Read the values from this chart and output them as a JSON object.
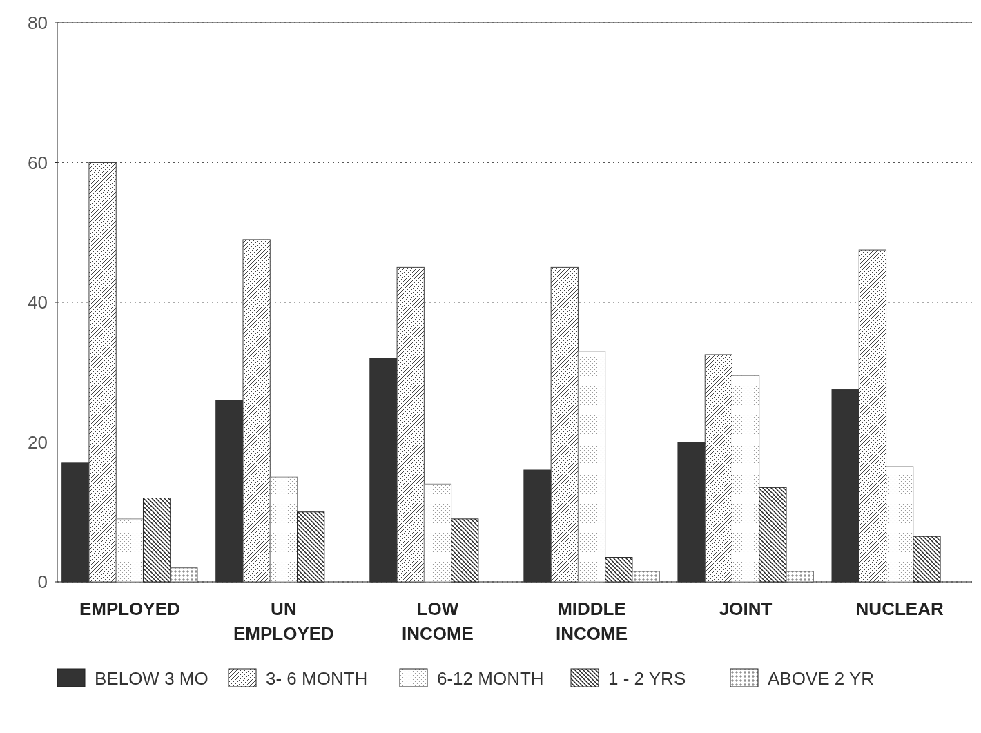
{
  "chart_data": {
    "type": "bar",
    "categories": [
      "EMPLOYED",
      "UN EMPLOYED",
      "LOW INCOME",
      "MIDDLE INCOME",
      "JOINT",
      "NUCLEAR"
    ],
    "series": [
      {
        "name": "BELOW 3 MO",
        "color": "#333333",
        "values": [
          17,
          26,
          32,
          16,
          20,
          27.5
        ]
      },
      {
        "name": "3- 6 MONTH",
        "color": "#444444",
        "values": [
          60,
          49,
          45,
          45,
          32.5,
          47.5
        ]
      },
      {
        "name": "6-12 MONTH",
        "color": "#888888",
        "values": [
          9,
          15,
          14,
          33,
          29.5,
          16.5
        ]
      },
      {
        "name": "1 - 2 YRS",
        "color": "#222222",
        "values": [
          12,
          10,
          9,
          3.5,
          13.5,
          6.5
        ]
      },
      {
        "name": "ABOVE 2 YR",
        "color": "#555555",
        "values": [
          2,
          0,
          0,
          1.5,
          1.5,
          0
        ]
      }
    ],
    "ylim": [
      0,
      80
    ],
    "yticks": [
      0,
      20,
      40,
      60,
      80
    ],
    "grid": "y",
    "legend": "bottom"
  }
}
